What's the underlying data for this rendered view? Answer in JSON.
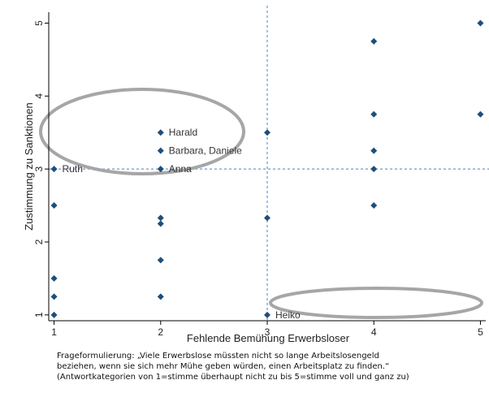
{
  "chart_data": {
    "type": "scatter",
    "xlabel": "Fehlende Bemühung Erwerbsloser",
    "ylabel": "Zustimmung zu Sanktionen",
    "xlim": [
      0.95,
      5.05
    ],
    "ylim": [
      0.92,
      5.15
    ],
    "xticks": [
      "1",
      "2",
      "3",
      "4",
      "5"
    ],
    "yticks": [
      "1",
      "2",
      "3",
      "4",
      "5"
    ],
    "marker_color": "#1f4e79",
    "reference_line_color": "#4a7fc1",
    "ellipse_color": "#a6a6a6",
    "reference_lines": {
      "x": 3,
      "y": 3
    },
    "points": [
      {
        "x": 1,
        "y": 3,
        "label": "Ruth"
      },
      {
        "x": 1,
        "y": 2.5,
        "label": ""
      },
      {
        "x": 1,
        "y": 1.5,
        "label": ""
      },
      {
        "x": 1,
        "y": 1.25,
        "label": ""
      },
      {
        "x": 1,
        "y": 1,
        "label": ""
      },
      {
        "x": 2,
        "y": 3.5,
        "label": "Harald"
      },
      {
        "x": 2,
        "y": 3.25,
        "label": "Barbara, Daniele"
      },
      {
        "x": 2,
        "y": 3,
        "label": "Anna"
      },
      {
        "x": 2,
        "y": 2.33,
        "label": ""
      },
      {
        "x": 2,
        "y": 2.25,
        "label": ""
      },
      {
        "x": 2,
        "y": 1.75,
        "label": ""
      },
      {
        "x": 2,
        "y": 1.25,
        "label": ""
      },
      {
        "x": 3,
        "y": 3.5,
        "label": ""
      },
      {
        "x": 3,
        "y": 2.33,
        "label": ""
      },
      {
        "x": 3,
        "y": 1,
        "label": "Heiko"
      },
      {
        "x": 4,
        "y": 4.75,
        "label": ""
      },
      {
        "x": 4,
        "y": 3.75,
        "label": ""
      },
      {
        "x": 4,
        "y": 3.25,
        "label": ""
      },
      {
        "x": 4,
        "y": 3,
        "label": ""
      },
      {
        "x": 4,
        "y": 2.5,
        "label": ""
      },
      {
        "x": 5,
        "y": 5,
        "label": ""
      },
      {
        "x": 5,
        "y": 3.75,
        "label": ""
      }
    ]
  },
  "caption": {
    "line1": "Frageformulierung: „Viele Erwerbslose müssten nicht so lange Arbeitslosengeld",
    "line2": "beziehen, wenn sie sich mehr Mühe geben würden, einen Arbeitsplatz zu finden.“",
    "line3": "(Antwortkategorien von 1=stimme überhaupt nicht zu bis 5=stimme voll und ganz zu)"
  }
}
